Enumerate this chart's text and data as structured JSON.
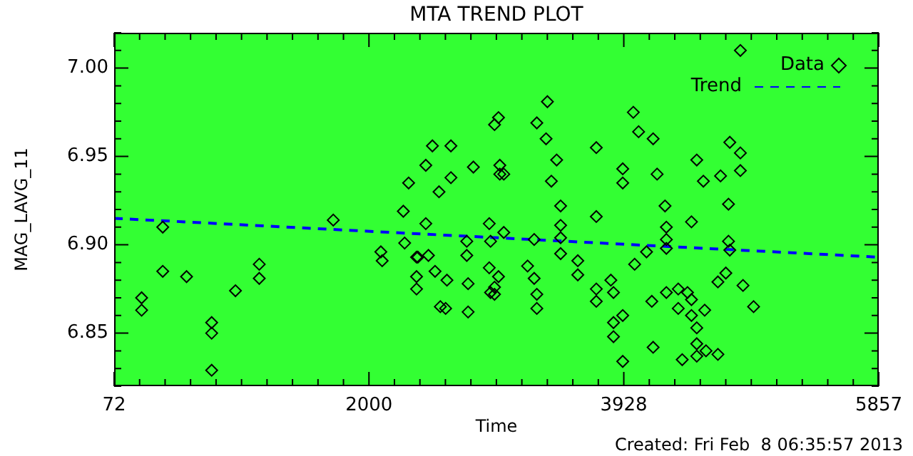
{
  "chart_data": {
    "type": "scatter",
    "title": "MTA TREND PLOT",
    "xlabel": "Time",
    "ylabel": "MAG_LAVG_11",
    "annotations": [
      "Created: Fri Feb  8 06:35:57 2013"
    ],
    "xlim": [
      72,
      5857
    ],
    "xticks": [
      72,
      2000,
      3928,
      5857
    ],
    "ylim": [
      6.82,
      7.02
    ],
    "yticks": [
      6.85,
      {
        "value": 6.9,
        "label": "6.90"
      },
      6.95,
      {
        "value": 7,
        "label": "7.00"
      }
    ],
    "grid": false,
    "legend": "top right",
    "series": [
      {
        "name": "Data",
        "color": "#000000",
        "marker": "diamond",
        "x": [
          280,
          280,
          440,
          440,
          620,
          810,
          810,
          810,
          990,
          1170,
          1170,
          1730,
          2090,
          2100,
          2260,
          2270,
          2300,
          2360,
          2360,
          2360,
          2370,
          2430,
          2430,
          2450,
          2480,
          2500,
          2530,
          2540,
          2580,
          2590,
          2620,
          2620,
          2740,
          2740,
          2750,
          2750,
          2790,
          2910,
          2910,
          2920,
          2920,
          2950,
          2950,
          2950,
          2980,
          2980,
          2990,
          2990,
          3020,
          3020,
          3200,
          3250,
          3250,
          3270,
          3270,
          3270,
          3340,
          3350,
          3380,
          3420,
          3450,
          3450,
          3450,
          3450,
          3580,
          3580,
          3720,
          3720,
          3720,
          3720,
          3830,
          3850,
          3850,
          3850,
          3920,
          3920,
          3920,
          3920,
          4000,
          4010,
          4040,
          4100,
          4140,
          4150,
          4150,
          4180,
          4240,
          4250,
          4250,
          4250,
          4250,
          4340,
          4340,
          4370,
          4410,
          4440,
          4440,
          4440,
          4480,
          4480,
          4480,
          4480,
          4530,
          4540,
          4550,
          4640,
          4640,
          4660,
          4700,
          4720,
          4720,
          4730,
          4730,
          4810,
          4810,
          4810,
          4830,
          4910
        ],
        "values": [
          6.87,
          6.863,
          6.91,
          6.885,
          6.882,
          6.856,
          6.85,
          6.829,
          6.874,
          6.889,
          6.881,
          6.914,
          6.896,
          6.891,
          6.919,
          6.901,
          6.935,
          6.893,
          6.882,
          6.875,
          6.893,
          6.945,
          6.912,
          6.894,
          6.956,
          6.885,
          6.93,
          6.865,
          6.864,
          6.88,
          6.956,
          6.938,
          6.902,
          6.894,
          6.878,
          6.862,
          6.944,
          6.912,
          6.887,
          6.902,
          6.873,
          6.876,
          6.872,
          6.968,
          6.972,
          6.882,
          6.945,
          6.94,
          6.94,
          6.907,
          6.888,
          6.881,
          6.903,
          6.872,
          6.864,
          6.969,
          6.96,
          6.981,
          6.936,
          6.948,
          6.922,
          6.911,
          6.904,
          6.895,
          6.891,
          6.883,
          6.875,
          6.868,
          6.955,
          6.916,
          6.88,
          6.873,
          6.856,
          6.848,
          6.834,
          6.943,
          6.935,
          6.86,
          6.975,
          6.889,
          6.964,
          6.896,
          6.868,
          6.96,
          6.842,
          6.94,
          6.922,
          6.91,
          6.903,
          6.873,
          6.898,
          6.864,
          6.875,
          6.835,
          6.873,
          6.869,
          6.86,
          6.913,
          6.853,
          6.837,
          6.844,
          6.948,
          6.936,
          6.863,
          6.84,
          6.879,
          6.838,
          6.939,
          6.884,
          6.923,
          6.902,
          6.897,
          6.958,
          6.952,
          6.942,
          7.01,
          6.877,
          6.865
        ]
      },
      {
        "name": "Trend",
        "type": "line",
        "color": "#0000ff",
        "line_style": "dashed",
        "x": [
          72,
          5857
        ],
        "values": [
          6.915,
          6.893
        ]
      }
    ]
  }
}
